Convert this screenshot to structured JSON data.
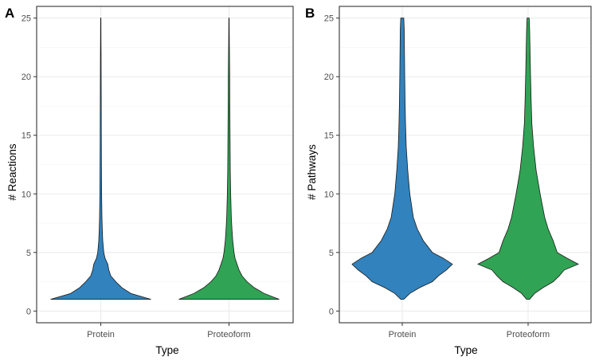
{
  "chart_data": [
    {
      "tag": "A",
      "type": "violin",
      "xlabel": "Type",
      "ylabel": "# Reactions",
      "categories": [
        "Protein",
        "Proteoform"
      ],
      "ylim": [
        -1,
        26
      ],
      "yticks": [
        0,
        5,
        10,
        15,
        20,
        25
      ],
      "grid": true,
      "series": [
        {
          "name": "Protein",
          "color": "#3182bd",
          "density": [
            [
              1,
              1.0
            ],
            [
              1.5,
              0.6
            ],
            [
              2,
              0.42
            ],
            [
              2.5,
              0.3
            ],
            [
              3,
              0.2
            ],
            [
              3.5,
              0.16
            ],
            [
              4,
              0.14
            ],
            [
              4.5,
              0.085
            ],
            [
              5,
              0.06
            ],
            [
              6,
              0.04
            ],
            [
              7,
              0.03
            ],
            [
              8,
              0.024
            ],
            [
              10,
              0.018
            ],
            [
              12,
              0.014
            ],
            [
              15,
              0.011
            ],
            [
              18,
              0.009
            ],
            [
              20,
              0.008
            ],
            [
              22,
              0.006
            ],
            [
              23,
              0.004
            ],
            [
              25,
              0.003
            ]
          ]
        },
        {
          "name": "Proteoform",
          "color": "#31a354",
          "density": [
            [
              1,
              1.0
            ],
            [
              1.5,
              0.7
            ],
            [
              2,
              0.5
            ],
            [
              2.5,
              0.36
            ],
            [
              3,
              0.26
            ],
            [
              3.5,
              0.2
            ],
            [
              4,
              0.16
            ],
            [
              4.5,
              0.12
            ],
            [
              5,
              0.1
            ],
            [
              6,
              0.075
            ],
            [
              7,
              0.058
            ],
            [
              8,
              0.046
            ],
            [
              10,
              0.034
            ],
            [
              12,
              0.026
            ],
            [
              15,
              0.02
            ],
            [
              18,
              0.016
            ],
            [
              20,
              0.014
            ],
            [
              22,
              0.01
            ],
            [
              23,
              0.006
            ],
            [
              25,
              0.003
            ]
          ]
        }
      ]
    },
    {
      "tag": "B",
      "type": "violin",
      "xlabel": "Type",
      "ylabel": "# Pathways",
      "categories": [
        "Protein",
        "Proteoform"
      ],
      "ylim": [
        -1,
        26
      ],
      "yticks": [
        0,
        5,
        10,
        15,
        20,
        25
      ],
      "grid": true,
      "series": [
        {
          "name": "Protein",
          "color": "#3182bd",
          "density": [
            [
              1,
              0.03
            ],
            [
              1.5,
              0.15
            ],
            [
              2,
              0.35
            ],
            [
              2.5,
              0.6
            ],
            [
              3,
              0.72
            ],
            [
              3.5,
              0.88
            ],
            [
              4,
              1.0
            ],
            [
              4.5,
              0.82
            ],
            [
              5,
              0.6
            ],
            [
              6,
              0.42
            ],
            [
              7,
              0.3
            ],
            [
              8,
              0.22
            ],
            [
              10,
              0.15
            ],
            [
              12,
              0.11
            ],
            [
              14,
              0.08
            ],
            [
              16,
              0.065
            ],
            [
              18,
              0.055
            ],
            [
              20,
              0.05
            ],
            [
              22,
              0.045
            ],
            [
              24,
              0.04
            ],
            [
              25,
              0.03
            ]
          ]
        },
        {
          "name": "Proteoform",
          "color": "#31a354",
          "density": [
            [
              1,
              0.03
            ],
            [
              1.5,
              0.13
            ],
            [
              2,
              0.3
            ],
            [
              2.5,
              0.5
            ],
            [
              3,
              0.62
            ],
            [
              3.5,
              0.72
            ],
            [
              4,
              1.0
            ],
            [
              4.5,
              0.78
            ],
            [
              5,
              0.58
            ],
            [
              6,
              0.5
            ],
            [
              7,
              0.4
            ],
            [
              8,
              0.33
            ],
            [
              10,
              0.24
            ],
            [
              12,
              0.16
            ],
            [
              14,
              0.11
            ],
            [
              16,
              0.075
            ],
            [
              18,
              0.06
            ],
            [
              20,
              0.05
            ],
            [
              22,
              0.04
            ],
            [
              24,
              0.03
            ],
            [
              25,
              0.02
            ]
          ]
        }
      ]
    }
  ]
}
